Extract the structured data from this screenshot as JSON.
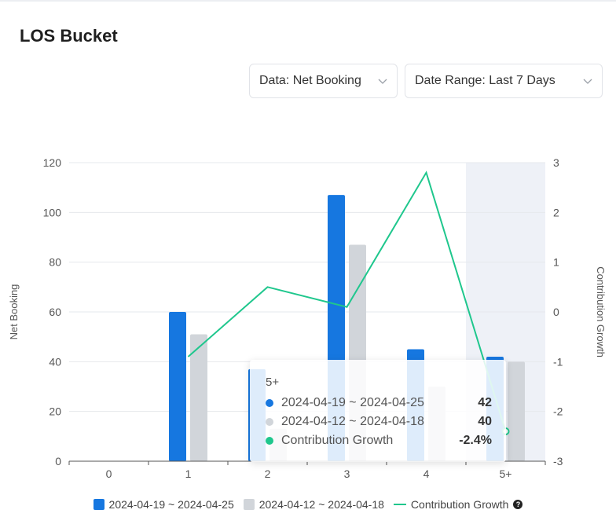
{
  "page": {
    "title": "LOS Bucket"
  },
  "filters": {
    "data_select": "Data: Net Booking",
    "date_range_select": "Date Range: Last 7 Days"
  },
  "colors": {
    "current": "#1677e0",
    "previous": "#d1d5da",
    "growth": "#1fc78d",
    "highlight": "#eef1f7"
  },
  "chart_data": {
    "type": "bar",
    "categories": [
      "0",
      "1",
      "2",
      "3",
      "4",
      "5+"
    ],
    "series": [
      {
        "name": "2024-04-19 ~ 2024-04-25",
        "type": "bar",
        "axis": "left",
        "values": [
          0,
          60,
          37,
          107,
          45,
          42
        ]
      },
      {
        "name": "2024-04-12 ~ 2024-04-18",
        "type": "bar",
        "axis": "left",
        "values": [
          0,
          51,
          13,
          87,
          30,
          40
        ]
      },
      {
        "name": "Contribution Growth",
        "type": "line",
        "axis": "right",
        "values": [
          null,
          -0.9,
          0.5,
          0.1,
          2.8,
          -2.4
        ]
      }
    ],
    "ylabel": "Net Booking",
    "y2label": "Contribution Growth",
    "ylim": [
      0,
      120
    ],
    "yticks": [
      0,
      20,
      40,
      60,
      80,
      100,
      120
    ],
    "y2lim": [
      -3,
      3
    ],
    "y2ticks": [
      -3,
      -2,
      -1,
      0,
      1,
      2,
      3
    ],
    "grid": true,
    "legend": "bottom",
    "highlighted_category": "5+"
  },
  "tooltip": {
    "title": "5+",
    "rows": [
      {
        "label": "2024-04-19 ~ 2024-04-25",
        "value": "42"
      },
      {
        "label": "2024-04-12 ~ 2024-04-18",
        "value": "40"
      },
      {
        "label": "Contribution Growth",
        "value": "-2.4%"
      }
    ]
  },
  "legend": {
    "items": [
      "2024-04-19 ~ 2024-04-25",
      "2024-04-12 ~ 2024-04-18",
      "Contribution Growth"
    ],
    "help_icon": "question-circle-icon"
  }
}
